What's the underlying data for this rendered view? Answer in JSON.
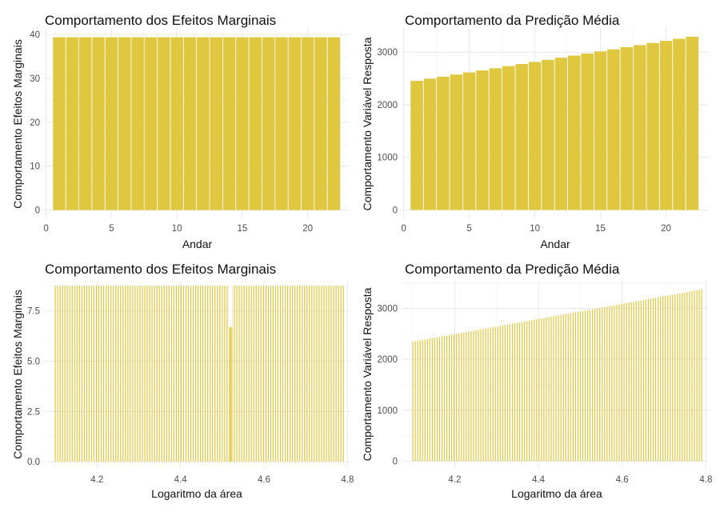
{
  "chart_data": [
    {
      "type": "bar",
      "title": "Comportamento dos Efeitos Marginais",
      "xlabel": "Andar",
      "ylabel": "Comportamento Efeitos Marginais",
      "x": [
        1,
        2,
        3,
        4,
        5,
        6,
        7,
        8,
        9,
        10,
        11,
        12,
        13,
        14,
        15,
        16,
        17,
        18,
        19,
        20,
        21,
        22
      ],
      "values": [
        39.4,
        39.4,
        39.4,
        39.4,
        39.4,
        39.4,
        39.4,
        39.4,
        39.4,
        39.4,
        39.4,
        39.4,
        39.4,
        39.4,
        39.4,
        39.4,
        39.4,
        39.4,
        39.4,
        39.4,
        39.4,
        39.4
      ],
      "xlim": [
        -0.1,
        23.2
      ],
      "ylim": [
        -1.9,
        41.5
      ],
      "xticks": [
        0,
        5,
        10,
        15,
        20
      ],
      "yticks": [
        0,
        10,
        20,
        30,
        40
      ],
      "xtick_labels": [
        "0",
        "5",
        "10",
        "15",
        "20"
      ],
      "ytick_labels": [
        "0",
        "10",
        "20",
        "30",
        "40"
      ],
      "grid": true,
      "bar_color": "#DFC740"
    },
    {
      "type": "bar",
      "title": "Comportamento da Predição Média",
      "xlabel": "Andar",
      "ylabel": "Comportamento Variável Resposta",
      "x": [
        1,
        2,
        3,
        4,
        5,
        6,
        7,
        8,
        9,
        10,
        11,
        12,
        13,
        14,
        15,
        16,
        17,
        18,
        19,
        20,
        21,
        22
      ],
      "values": [
        2455,
        2495,
        2535,
        2575,
        2615,
        2655,
        2695,
        2735,
        2775,
        2815,
        2855,
        2895,
        2935,
        2975,
        3015,
        3055,
        3095,
        3135,
        3175,
        3215,
        3255,
        3295
      ],
      "xlim": [
        -0.1,
        23.2
      ],
      "ylim": [
        -160,
        3460
      ],
      "xticks": [
        0,
        5,
        10,
        15,
        20
      ],
      "yticks": [
        0,
        1000,
        2000,
        3000
      ],
      "xtick_labels": [
        "0",
        "5",
        "10",
        "15",
        "20"
      ],
      "ytick_labels": [
        "0",
        "1000",
        "2000",
        "3000"
      ],
      "grid": true,
      "bar_color": "#DFC740"
    },
    {
      "type": "bar",
      "title": "Comportamento dos Efeitos Marginais",
      "xlabel": "Logaritmo da área",
      "ylabel": "Comportamento Efeitos Marginais",
      "x_range": [
        4.1,
        4.79
      ],
      "bar_count": 120,
      "value": 8.75,
      "dip": {
        "x": 4.52,
        "value": 6.7
      },
      "xlim": [
        4.075,
        4.805
      ],
      "ylim": [
        -0.35,
        9.0
      ],
      "xticks": [
        4.2,
        4.4,
        4.6,
        4.8
      ],
      "yticks": [
        0,
        2.5,
        5,
        7.5
      ],
      "xtick_labels": [
        "4.2",
        "4.4",
        "4.6",
        "4.8"
      ],
      "ytick_labels": [
        "0.0",
        "2.5",
        "5.0",
        "7.5"
      ],
      "grid": true,
      "bar_color": "#DFC740"
    },
    {
      "type": "bar",
      "title": "Comportamento da Predição Média",
      "xlabel": "Logaritmo da área",
      "ylabel": "Comportamento Variável Resposta",
      "x_range": [
        4.1,
        4.79
      ],
      "bar_count": 120,
      "start_value": 2345,
      "end_value": 3370,
      "xlim": [
        4.075,
        4.805
      ],
      "ylim": [
        -150,
        3540
      ],
      "xticks": [
        4.2,
        4.4,
        4.6,
        4.8
      ],
      "yticks": [
        0,
        1000,
        2000,
        3000
      ],
      "xtick_labels": [
        "4.2",
        "4.4",
        "4.6",
        "4.8"
      ],
      "ytick_labels": [
        "0",
        "1000",
        "2000",
        "3000"
      ],
      "grid": true,
      "bar_color": "#DFC740"
    }
  ]
}
